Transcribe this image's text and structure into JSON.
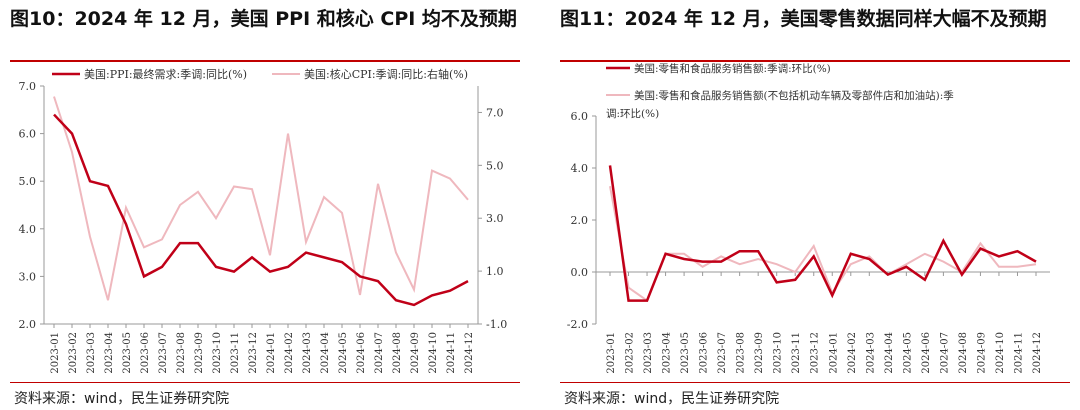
{
  "left": {
    "title": "图10：2024 年 12 月，美国 PPI 和核心 CPI 均不及预期",
    "source": "资料来源：wind，民生证券研究院"
  },
  "right": {
    "title": "图11：2024 年 12 月，美国零售数据同样大幅不及预期",
    "source": "资料来源：wind，民生证券研究院"
  },
  "colors": {
    "dark_red": "#c00018",
    "light_pink": "#efb8be",
    "rule_red": "#c00000"
  },
  "chart_data": [
    {
      "type": "line",
      "categories": [
        "2023-01",
        "2023-02",
        "2023-03",
        "2023-04",
        "2023-05",
        "2023-06",
        "2023-07",
        "2023-08",
        "2023-09",
        "2023-10",
        "2023-11",
        "2023-12",
        "2024-01",
        "2024-02",
        "2024-03",
        "2024-04",
        "2024-05",
        "2024-06",
        "2024-07",
        "2024-08",
        "2024-09",
        "2024-10",
        "2024-11",
        "2024-12"
      ],
      "series": [
        {
          "name": "美国:PPI:最终需求:季调:同比(%)",
          "axis": "left",
          "values": [
            6.4,
            6.0,
            5.0,
            4.9,
            4.1,
            3.0,
            3.2,
            3.7,
            3.7,
            3.2,
            3.1,
            3.4,
            3.1,
            3.2,
            3.5,
            3.4,
            3.3,
            3.0,
            2.9,
            2.5,
            2.4,
            2.6,
            2.7,
            2.9
          ]
        },
        {
          "name": "美国:核心CPI:季调:同比:右轴(%)",
          "axis": "right",
          "values": [
            7.6,
            5.5,
            2.3,
            -0.1,
            3.4,
            1.9,
            2.2,
            3.5,
            4.0,
            3.0,
            4.2,
            4.1,
            1.6,
            6.2,
            2.1,
            3.8,
            3.2,
            0.1,
            4.3,
            1.7,
            0.3,
            4.8,
            4.5,
            3.7
          ]
        }
      ],
      "y_left": {
        "ylim": [
          2.0,
          7.0
        ],
        "ticks": [
          "2.0",
          "3.0",
          "4.0",
          "5.0",
          "6.0",
          "7.0"
        ]
      },
      "y_right": {
        "ylim": [
          -1.0,
          8.0
        ],
        "ticks": [
          "-1.0",
          "1.0",
          "3.0",
          "5.0",
          "7.0"
        ]
      },
      "legend": "top",
      "grid": false
    },
    {
      "type": "line",
      "categories": [
        "2023-01",
        "2023-02",
        "2023-03",
        "2023-04",
        "2023-05",
        "2023-06",
        "2023-07",
        "2023-08",
        "2023-09",
        "2023-10",
        "2023-11",
        "2023-12",
        "2024-01",
        "2024-02",
        "2024-03",
        "2024-04",
        "2024-05",
        "2024-06",
        "2024-07",
        "2024-08",
        "2024-09",
        "2024-10",
        "2024-11",
        "2024-12"
      ],
      "series": [
        {
          "name": "美国:零售和食品服务销售额:季调:环比(%)",
          "legend_lines": [
            "美国:零售和食品服务销售额:季调:环比(%)"
          ],
          "values": [
            4.1,
            -1.1,
            -1.1,
            0.7,
            0.5,
            0.4,
            0.4,
            0.8,
            0.8,
            -0.4,
            -0.3,
            0.6,
            -0.9,
            0.7,
            0.5,
            -0.1,
            0.2,
            -0.3,
            1.2,
            -0.1,
            0.9,
            0.6,
            0.8,
            0.4
          ]
        },
        {
          "name": "美国:零售和食品服务销售额(不包括机动车辆及零部件店和加油站):季调:环比(%)",
          "legend_lines": [
            "美国:零售和食品服务销售额(不包括机动车辆及零部件店和加油站):季",
            "调:环比(%)"
          ],
          "values": [
            3.3,
            -0.6,
            -1.1,
            0.7,
            0.7,
            0.2,
            0.6,
            0.3,
            0.5,
            0.3,
            0.0,
            1.0,
            -0.8,
            0.3,
            0.6,
            -0.1,
            0.3,
            0.7,
            0.4,
            0.0,
            1.1,
            0.2,
            0.2,
            0.3
          ]
        }
      ],
      "y": {
        "ylim": [
          -2.0,
          6.0
        ],
        "ticks": [
          "-2.0",
          "0.0",
          "2.0",
          "4.0",
          "6.0"
        ]
      },
      "legend": "top",
      "grid": false
    }
  ]
}
